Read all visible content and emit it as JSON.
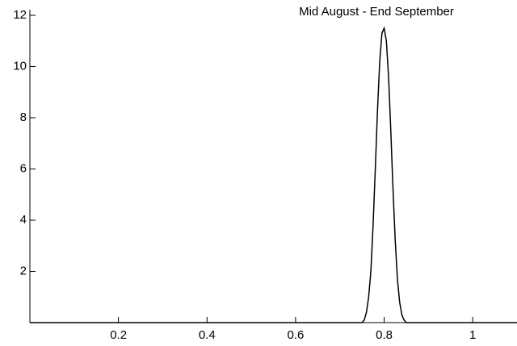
{
  "chart_data": {
    "type": "line",
    "title": "Mid August - End September",
    "x": [
      0,
      0.75,
      0.755,
      0.76,
      0.765,
      0.77,
      0.775,
      0.78,
      0.785,
      0.79,
      0.795,
      0.8,
      0.805,
      0.81,
      0.815,
      0.82,
      0.825,
      0.83,
      0.835,
      0.84,
      0.845,
      0.85,
      1.1
    ],
    "series": [
      {
        "color": "#000000",
        "values": [
          0,
          0,
          0.1,
          0.4,
          1,
          2,
          3.8,
          6,
          8.3,
          10.2,
          11.3,
          11.5,
          11,
          9.6,
          7.5,
          5.2,
          3.2,
          1.7,
          0.8,
          0.3,
          0.1,
          0,
          0
        ]
      }
    ],
    "xlim": [
      0,
      1.1
    ],
    "xticks": [
      0.2,
      0.4,
      0.6,
      0.8,
      1
    ],
    "ylim": [
      0,
      12
    ],
    "yticks": [
      2,
      4,
      6,
      8,
      10,
      12
    ]
  }
}
